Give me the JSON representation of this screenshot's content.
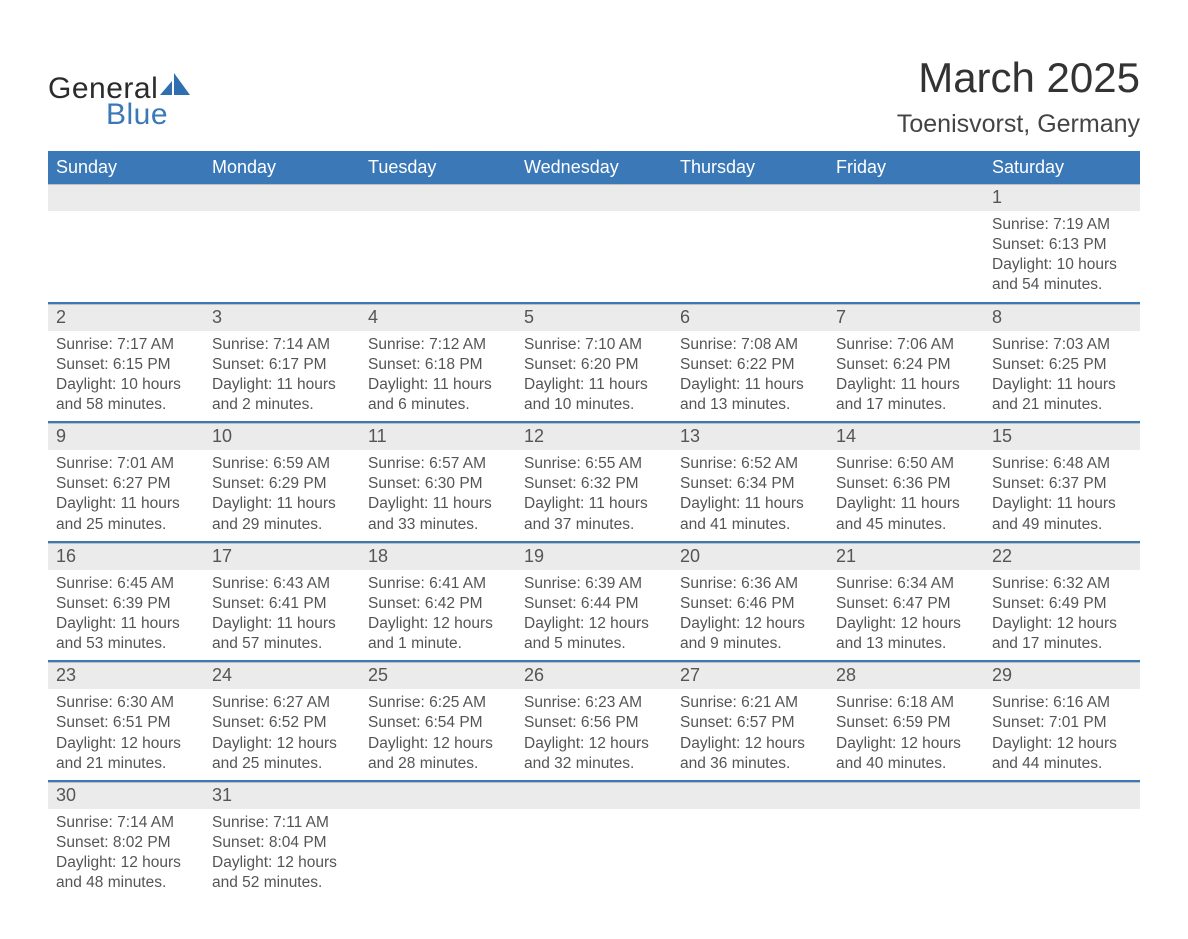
{
  "logo": {
    "word1": "General",
    "word2": "Blue",
    "sail_color": "#2f6faf",
    "text_color_dark": "#2b2b2b",
    "text_color_blue": "#3a78b7"
  },
  "header": {
    "month_title": "March 2025",
    "location": "Toenisvorst, Germany"
  },
  "style": {
    "header_bg": "#3a78b7",
    "header_text": "#ffffff",
    "daynum_bg": "#ebebeb",
    "daynum_border": "#bfbfbf",
    "week_divider": "#3a78b7",
    "body_text": "#555555",
    "title_fontsize": 42,
    "location_fontsize": 25,
    "dayheader_fontsize": 18,
    "daynum_fontsize": 18,
    "cell_fontsize": 15.5
  },
  "day_names": [
    "Sunday",
    "Monday",
    "Tuesday",
    "Wednesday",
    "Thursday",
    "Friday",
    "Saturday"
  ],
  "weeks": [
    [
      {
        "num": "",
        "lines": [
          "",
          "",
          "",
          ""
        ]
      },
      {
        "num": "",
        "lines": [
          "",
          "",
          "",
          ""
        ]
      },
      {
        "num": "",
        "lines": [
          "",
          "",
          "",
          ""
        ]
      },
      {
        "num": "",
        "lines": [
          "",
          "",
          "",
          ""
        ]
      },
      {
        "num": "",
        "lines": [
          "",
          "",
          "",
          ""
        ]
      },
      {
        "num": "",
        "lines": [
          "",
          "",
          "",
          ""
        ]
      },
      {
        "num": "1",
        "lines": [
          "Sunrise: 7:19 AM",
          "Sunset: 6:13 PM",
          "Daylight: 10 hours",
          "and 54 minutes."
        ]
      }
    ],
    [
      {
        "num": "2",
        "lines": [
          "Sunrise: 7:17 AM",
          "Sunset: 6:15 PM",
          "Daylight: 10 hours",
          "and 58 minutes."
        ]
      },
      {
        "num": "3",
        "lines": [
          "Sunrise: 7:14 AM",
          "Sunset: 6:17 PM",
          "Daylight: 11 hours",
          "and 2 minutes."
        ]
      },
      {
        "num": "4",
        "lines": [
          "Sunrise: 7:12 AM",
          "Sunset: 6:18 PM",
          "Daylight: 11 hours",
          "and 6 minutes."
        ]
      },
      {
        "num": "5",
        "lines": [
          "Sunrise: 7:10 AM",
          "Sunset: 6:20 PM",
          "Daylight: 11 hours",
          "and 10 minutes."
        ]
      },
      {
        "num": "6",
        "lines": [
          "Sunrise: 7:08 AM",
          "Sunset: 6:22 PM",
          "Daylight: 11 hours",
          "and 13 minutes."
        ]
      },
      {
        "num": "7",
        "lines": [
          "Sunrise: 7:06 AM",
          "Sunset: 6:24 PM",
          "Daylight: 11 hours",
          "and 17 minutes."
        ]
      },
      {
        "num": "8",
        "lines": [
          "Sunrise: 7:03 AM",
          "Sunset: 6:25 PM",
          "Daylight: 11 hours",
          "and 21 minutes."
        ]
      }
    ],
    [
      {
        "num": "9",
        "lines": [
          "Sunrise: 7:01 AM",
          "Sunset: 6:27 PM",
          "Daylight: 11 hours",
          "and 25 minutes."
        ]
      },
      {
        "num": "10",
        "lines": [
          "Sunrise: 6:59 AM",
          "Sunset: 6:29 PM",
          "Daylight: 11 hours",
          "and 29 minutes."
        ]
      },
      {
        "num": "11",
        "lines": [
          "Sunrise: 6:57 AM",
          "Sunset: 6:30 PM",
          "Daylight: 11 hours",
          "and 33 minutes."
        ]
      },
      {
        "num": "12",
        "lines": [
          "Sunrise: 6:55 AM",
          "Sunset: 6:32 PM",
          "Daylight: 11 hours",
          "and 37 minutes."
        ]
      },
      {
        "num": "13",
        "lines": [
          "Sunrise: 6:52 AM",
          "Sunset: 6:34 PM",
          "Daylight: 11 hours",
          "and 41 minutes."
        ]
      },
      {
        "num": "14",
        "lines": [
          "Sunrise: 6:50 AM",
          "Sunset: 6:36 PM",
          "Daylight: 11 hours",
          "and 45 minutes."
        ]
      },
      {
        "num": "15",
        "lines": [
          "Sunrise: 6:48 AM",
          "Sunset: 6:37 PM",
          "Daylight: 11 hours",
          "and 49 minutes."
        ]
      }
    ],
    [
      {
        "num": "16",
        "lines": [
          "Sunrise: 6:45 AM",
          "Sunset: 6:39 PM",
          "Daylight: 11 hours",
          "and 53 minutes."
        ]
      },
      {
        "num": "17",
        "lines": [
          "Sunrise: 6:43 AM",
          "Sunset: 6:41 PM",
          "Daylight: 11 hours",
          "and 57 minutes."
        ]
      },
      {
        "num": "18",
        "lines": [
          "Sunrise: 6:41 AM",
          "Sunset: 6:42 PM",
          "Daylight: 12 hours",
          "and 1 minute."
        ]
      },
      {
        "num": "19",
        "lines": [
          "Sunrise: 6:39 AM",
          "Sunset: 6:44 PM",
          "Daylight: 12 hours",
          "and 5 minutes."
        ]
      },
      {
        "num": "20",
        "lines": [
          "Sunrise: 6:36 AM",
          "Sunset: 6:46 PM",
          "Daylight: 12 hours",
          "and 9 minutes."
        ]
      },
      {
        "num": "21",
        "lines": [
          "Sunrise: 6:34 AM",
          "Sunset: 6:47 PM",
          "Daylight: 12 hours",
          "and 13 minutes."
        ]
      },
      {
        "num": "22",
        "lines": [
          "Sunrise: 6:32 AM",
          "Sunset: 6:49 PM",
          "Daylight: 12 hours",
          "and 17 minutes."
        ]
      }
    ],
    [
      {
        "num": "23",
        "lines": [
          "Sunrise: 6:30 AM",
          "Sunset: 6:51 PM",
          "Daylight: 12 hours",
          "and 21 minutes."
        ]
      },
      {
        "num": "24",
        "lines": [
          "Sunrise: 6:27 AM",
          "Sunset: 6:52 PM",
          "Daylight: 12 hours",
          "and 25 minutes."
        ]
      },
      {
        "num": "25",
        "lines": [
          "Sunrise: 6:25 AM",
          "Sunset: 6:54 PM",
          "Daylight: 12 hours",
          "and 28 minutes."
        ]
      },
      {
        "num": "26",
        "lines": [
          "Sunrise: 6:23 AM",
          "Sunset: 6:56 PM",
          "Daylight: 12 hours",
          "and 32 minutes."
        ]
      },
      {
        "num": "27",
        "lines": [
          "Sunrise: 6:21 AM",
          "Sunset: 6:57 PM",
          "Daylight: 12 hours",
          "and 36 minutes."
        ]
      },
      {
        "num": "28",
        "lines": [
          "Sunrise: 6:18 AM",
          "Sunset: 6:59 PM",
          "Daylight: 12 hours",
          "and 40 minutes."
        ]
      },
      {
        "num": "29",
        "lines": [
          "Sunrise: 6:16 AM",
          "Sunset: 7:01 PM",
          "Daylight: 12 hours",
          "and 44 minutes."
        ]
      }
    ],
    [
      {
        "num": "30",
        "lines": [
          "Sunrise: 7:14 AM",
          "Sunset: 8:02 PM",
          "Daylight: 12 hours",
          "and 48 minutes."
        ]
      },
      {
        "num": "31",
        "lines": [
          "Sunrise: 7:11 AM",
          "Sunset: 8:04 PM",
          "Daylight: 12 hours",
          "and 52 minutes."
        ]
      },
      {
        "num": "",
        "lines": [
          "",
          "",
          "",
          ""
        ]
      },
      {
        "num": "",
        "lines": [
          "",
          "",
          "",
          ""
        ]
      },
      {
        "num": "",
        "lines": [
          "",
          "",
          "",
          ""
        ]
      },
      {
        "num": "",
        "lines": [
          "",
          "",
          "",
          ""
        ]
      },
      {
        "num": "",
        "lines": [
          "",
          "",
          "",
          ""
        ]
      }
    ]
  ]
}
